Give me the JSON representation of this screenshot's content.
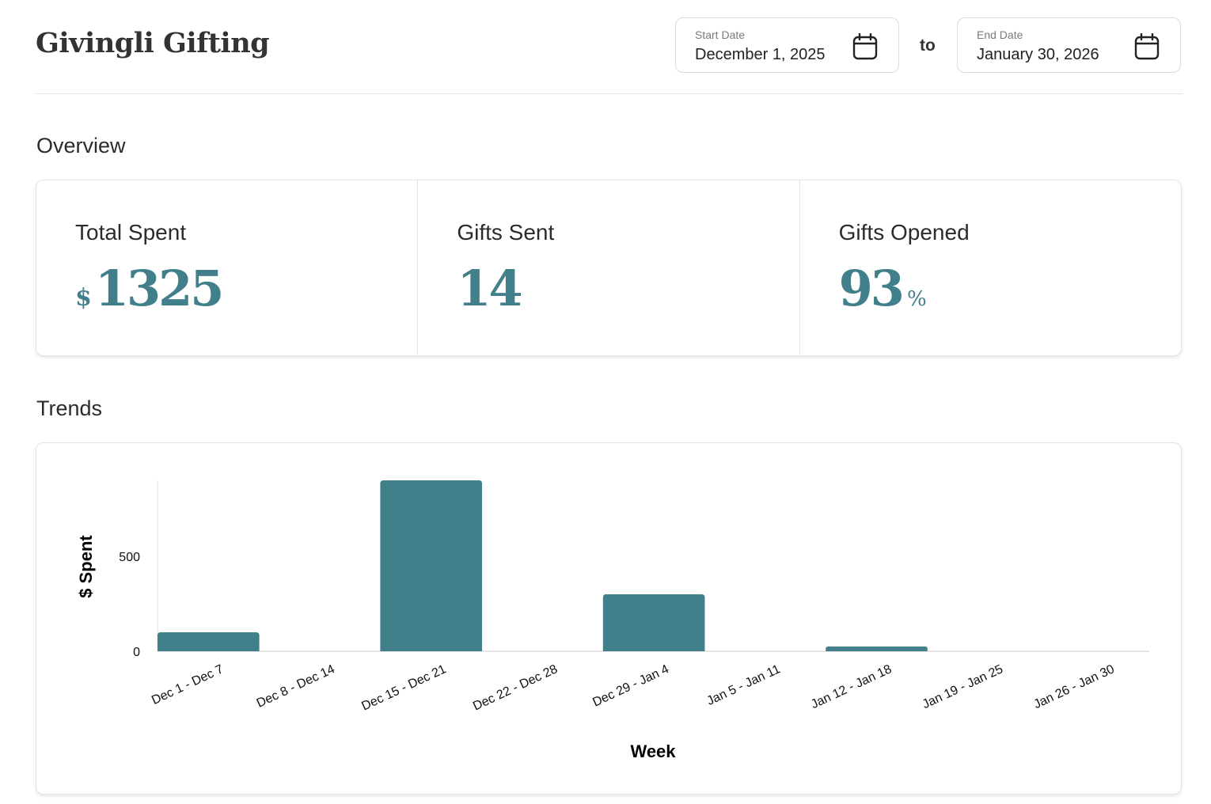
{
  "header": {
    "brand": "Givingli Gifting",
    "start_date": {
      "label": "Start Date",
      "value": "December 1, 2025",
      "icon": "calendar-icon"
    },
    "connector": "to",
    "end_date": {
      "label": "End Date",
      "value": "January 30, 2026",
      "icon": "calendar-icon"
    }
  },
  "overview": {
    "title": "Overview",
    "stats": [
      {
        "label": "Total Spent",
        "prefix": "$",
        "value": "1325",
        "suffix": ""
      },
      {
        "label": "Gifts Sent",
        "prefix": "",
        "value": "14",
        "suffix": ""
      },
      {
        "label": "Gifts Opened",
        "prefix": "",
        "value": "93",
        "suffix": "%"
      }
    ]
  },
  "trends": {
    "title": "Trends"
  },
  "colors": {
    "accent": "#417f8a",
    "text": "#2b2b2b",
    "border": "#e4e4e4"
  },
  "chart_data": {
    "type": "bar",
    "categories": [
      "Dec 1 - Dec 7",
      "Dec 8 - Dec 14",
      "Dec 15 - Dec 21",
      "Dec 22 - Dec 28",
      "Dec 29 - Jan 4",
      "Jan 5 - Jan 11",
      "Jan 12 - Jan 18",
      "Jan 19 - Jan 25",
      "Jan 26 - Jan 30"
    ],
    "values": [
      100,
      0,
      900,
      0,
      300,
      0,
      25,
      0,
      0
    ],
    "xlabel": "Week",
    "ylabel": "$ Spent",
    "yticks": [
      0,
      500
    ],
    "ylim": [
      0,
      900
    ],
    "grid": false,
    "legend": "none"
  }
}
